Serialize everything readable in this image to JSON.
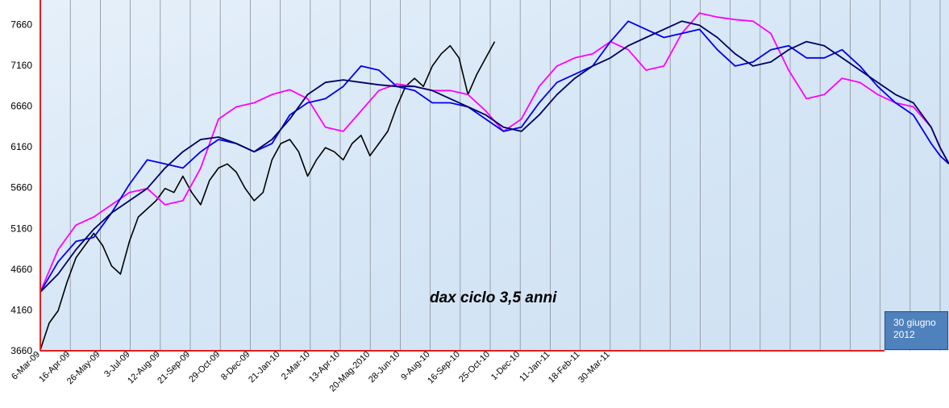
{
  "chart_data": {
    "type": "line",
    "title": "dax  ciclo 3,5 anni",
    "ylim": [
      3660,
      7960
    ],
    "yticks": [
      3660,
      4160,
      4660,
      5160,
      5660,
      6160,
      6660,
      7160,
      7660
    ],
    "x_tick_labels": [
      "6-Mar-09",
      "16-Apr-09",
      "26-May-09",
      "3-Jul-09",
      "12-Aug-09",
      "21-Sep-09",
      "29-Oct-09",
      "8-Dec-09",
      "21-Jan-10",
      "2-Mar-10",
      "13-Apr-10",
      "20-Mag-2010",
      "28-Jun-10",
      "9-Aug-10",
      "16-Sep-10",
      "25-Oct-10",
      "1-Dec-10",
      "11-Jan-11",
      "18-Feb-11",
      "30-Mar-11"
    ],
    "note": {
      "line1": "30 giugno",
      "line2": "2012"
    },
    "colors": {
      "background": "#dbe9f7",
      "frame": "#e02020",
      "note_box": "#4f81bd"
    },
    "grid": "vertical",
    "series": [
      {
        "color": "#000000",
        "points": [
          [
            0,
            3670
          ],
          [
            1,
            4000
          ],
          [
            2,
            4150
          ],
          [
            3,
            4500
          ],
          [
            4,
            4800
          ],
          [
            5,
            4950
          ],
          [
            6,
            5100
          ],
          [
            7,
            4950
          ],
          [
            8,
            4700
          ],
          [
            9,
            4600
          ],
          [
            10,
            5000
          ],
          [
            11,
            5300
          ],
          [
            12,
            5400
          ],
          [
            13,
            5500
          ],
          [
            14,
            5650
          ],
          [
            15,
            5600
          ],
          [
            16,
            5800
          ],
          [
            17,
            5600
          ],
          [
            18,
            5450
          ],
          [
            19,
            5750
          ],
          [
            20,
            5900
          ],
          [
            21,
            5950
          ],
          [
            22,
            5850
          ],
          [
            23,
            5650
          ],
          [
            24,
            5500
          ],
          [
            25,
            5600
          ],
          [
            26,
            6000
          ],
          [
            27,
            6200
          ],
          [
            28,
            6250
          ],
          [
            29,
            6100
          ],
          [
            30,
            5800
          ],
          [
            31,
            6000
          ],
          [
            32,
            6150
          ],
          [
            33,
            6100
          ],
          [
            34,
            6000
          ],
          [
            35,
            6200
          ],
          [
            36,
            6300
          ],
          [
            37,
            6050
          ],
          [
            38,
            6200
          ],
          [
            39,
            6350
          ],
          [
            40,
            6650
          ],
          [
            41,
            6900
          ],
          [
            42,
            7000
          ],
          [
            43,
            6900
          ],
          [
            44,
            7150
          ],
          [
            45,
            7300
          ],
          [
            46,
            7400
          ],
          [
            47,
            7250
          ],
          [
            48,
            6800
          ],
          [
            49,
            7050
          ],
          [
            50,
            7250
          ],
          [
            51,
            7450
          ]
        ]
      },
      {
        "color": "#ff00ff",
        "points": [
          [
            0,
            4380
          ],
          [
            2,
            4900
          ],
          [
            4,
            5200
          ],
          [
            6,
            5300
          ],
          [
            8,
            5450
          ],
          [
            10,
            5600
          ],
          [
            12,
            5650
          ],
          [
            14,
            5450
          ],
          [
            16,
            5500
          ],
          [
            18,
            5900
          ],
          [
            20,
            6500
          ],
          [
            22,
            6650
          ],
          [
            24,
            6700
          ],
          [
            26,
            6800
          ],
          [
            28,
            6860
          ],
          [
            30,
            6750
          ],
          [
            32,
            6400
          ],
          [
            34,
            6350
          ],
          [
            36,
            6600
          ],
          [
            38,
            6850
          ],
          [
            40,
            6930
          ],
          [
            42,
            6900
          ],
          [
            44,
            6850
          ],
          [
            46,
            6850
          ],
          [
            48,
            6800
          ],
          [
            50,
            6600
          ],
          [
            52,
            6350
          ],
          [
            54,
            6500
          ],
          [
            56,
            6900
          ],
          [
            58,
            7150
          ],
          [
            60,
            7250
          ],
          [
            62,
            7300
          ],
          [
            64,
            7450
          ],
          [
            66,
            7350
          ],
          [
            68,
            7100
          ],
          [
            70,
            7150
          ],
          [
            72,
            7550
          ],
          [
            74,
            7800
          ],
          [
            76,
            7750
          ],
          [
            78,
            7720
          ],
          [
            80,
            7700
          ],
          [
            82,
            7550
          ],
          [
            84,
            7100
          ],
          [
            86,
            6750
          ],
          [
            88,
            6800
          ],
          [
            90,
            7000
          ],
          [
            92,
            6950
          ],
          [
            94,
            6800
          ],
          [
            96,
            6700
          ],
          [
            98,
            6650
          ],
          [
            100,
            6400
          ],
          [
            101,
            6150
          ],
          [
            102,
            5950
          ]
        ]
      },
      {
        "color": "#0000ee",
        "points": [
          [
            0,
            4380
          ],
          [
            2,
            4750
          ],
          [
            4,
            5000
          ],
          [
            6,
            5050
          ],
          [
            8,
            5350
          ],
          [
            10,
            5700
          ],
          [
            12,
            6000
          ],
          [
            14,
            5950
          ],
          [
            16,
            5900
          ],
          [
            18,
            6100
          ],
          [
            20,
            6250
          ],
          [
            22,
            6200
          ],
          [
            24,
            6100
          ],
          [
            26,
            6200
          ],
          [
            28,
            6550
          ],
          [
            30,
            6700
          ],
          [
            32,
            6750
          ],
          [
            34,
            6900
          ],
          [
            36,
            7150
          ],
          [
            38,
            7100
          ],
          [
            40,
            6900
          ],
          [
            42,
            6850
          ],
          [
            44,
            6700
          ],
          [
            46,
            6700
          ],
          [
            48,
            6650
          ],
          [
            50,
            6500
          ],
          [
            52,
            6350
          ],
          [
            54,
            6400
          ],
          [
            56,
            6700
          ],
          [
            58,
            6950
          ],
          [
            60,
            7050
          ],
          [
            62,
            7150
          ],
          [
            64,
            7450
          ],
          [
            66,
            7700
          ],
          [
            68,
            7600
          ],
          [
            70,
            7500
          ],
          [
            72,
            7550
          ],
          [
            74,
            7600
          ],
          [
            76,
            7350
          ],
          [
            78,
            7150
          ],
          [
            80,
            7200
          ],
          [
            82,
            7350
          ],
          [
            84,
            7400
          ],
          [
            86,
            7250
          ],
          [
            88,
            7250
          ],
          [
            90,
            7350
          ],
          [
            92,
            7150
          ],
          [
            94,
            6900
          ],
          [
            96,
            6700
          ],
          [
            98,
            6550
          ],
          [
            100,
            6200
          ],
          [
            101,
            6050
          ],
          [
            102,
            5950
          ]
        ]
      },
      {
        "color": "#000066",
        "points": [
          [
            0,
            4380
          ],
          [
            2,
            4600
          ],
          [
            4,
            4900
          ],
          [
            6,
            5150
          ],
          [
            8,
            5350
          ],
          [
            10,
            5500
          ],
          [
            12,
            5650
          ],
          [
            14,
            5900
          ],
          [
            16,
            6100
          ],
          [
            18,
            6250
          ],
          [
            20,
            6280
          ],
          [
            22,
            6200
          ],
          [
            24,
            6100
          ],
          [
            26,
            6250
          ],
          [
            28,
            6500
          ],
          [
            30,
            6800
          ],
          [
            32,
            6950
          ],
          [
            34,
            6980
          ],
          [
            36,
            6950
          ],
          [
            38,
            6920
          ],
          [
            40,
            6900
          ],
          [
            42,
            6900
          ],
          [
            44,
            6850
          ],
          [
            46,
            6750
          ],
          [
            48,
            6650
          ],
          [
            50,
            6550
          ],
          [
            52,
            6400
          ],
          [
            54,
            6350
          ],
          [
            56,
            6550
          ],
          [
            58,
            6800
          ],
          [
            60,
            7000
          ],
          [
            62,
            7150
          ],
          [
            64,
            7250
          ],
          [
            66,
            7400
          ],
          [
            68,
            7500
          ],
          [
            70,
            7600
          ],
          [
            72,
            7700
          ],
          [
            74,
            7650
          ],
          [
            76,
            7500
          ],
          [
            78,
            7300
          ],
          [
            80,
            7150
          ],
          [
            82,
            7200
          ],
          [
            84,
            7350
          ],
          [
            86,
            7450
          ],
          [
            88,
            7400
          ],
          [
            90,
            7250
          ],
          [
            92,
            7100
          ],
          [
            94,
            6950
          ],
          [
            96,
            6800
          ],
          [
            98,
            6700
          ],
          [
            100,
            6400
          ],
          [
            101,
            6150
          ],
          [
            102,
            5950
          ]
        ]
      }
    ]
  }
}
